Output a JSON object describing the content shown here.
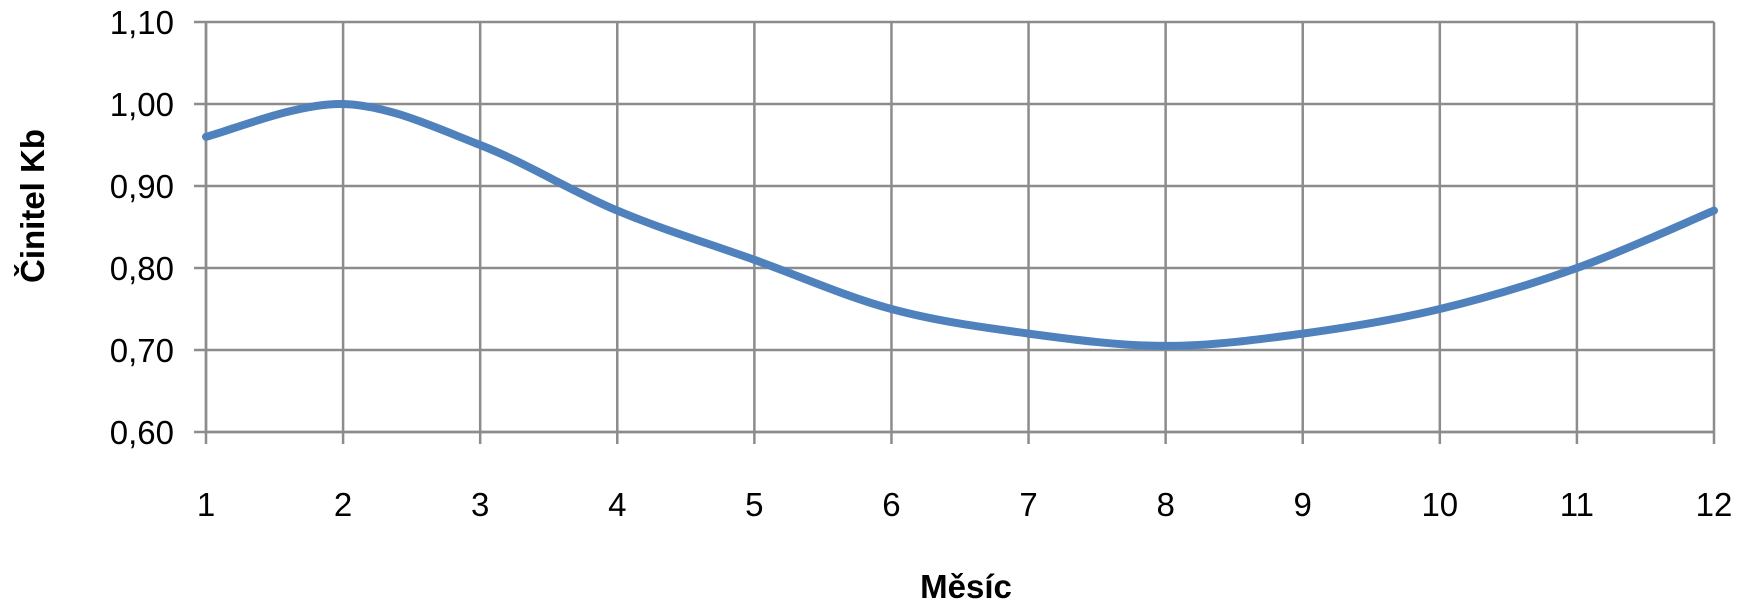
{
  "chart_data": {
    "type": "line",
    "xlabel": "Měsíc",
    "ylabel": "Činitel Kb",
    "x": [
      1,
      2,
      3,
      4,
      5,
      6,
      7,
      8,
      9,
      10,
      11,
      12
    ],
    "x_tick_labels": [
      "1",
      "2",
      "3",
      "4",
      "5",
      "6",
      "7",
      "8",
      "9",
      "10",
      "11",
      "12"
    ],
    "y_ticks": [
      0.6,
      0.7,
      0.8,
      0.9,
      1.0,
      1.1
    ],
    "y_tick_labels": [
      "0,60",
      "0,70",
      "0,80",
      "0,90",
      "1,00",
      "1,10"
    ],
    "ylim": [
      0.6,
      1.1
    ],
    "xlim": [
      1,
      12
    ],
    "grid": true,
    "legend": "none",
    "series": [
      {
        "values": [
          0.96,
          1.0,
          0.95,
          0.87,
          0.81,
          0.75,
          0.72,
          0.705,
          0.72,
          0.75,
          0.8,
          0.87
        ],
        "color": "#4f81bd"
      }
    ]
  }
}
